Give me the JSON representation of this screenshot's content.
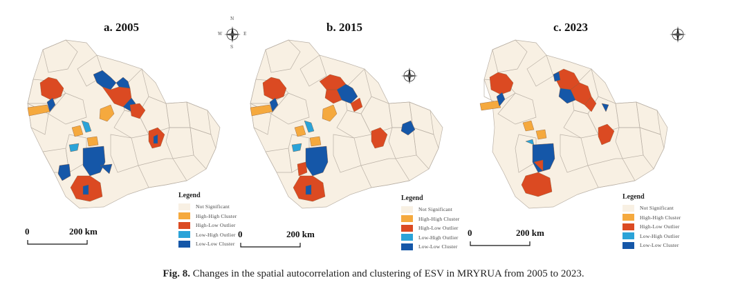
{
  "figure": {
    "panels": [
      {
        "title": "a. 2005"
      },
      {
        "title": "b. 2015"
      },
      {
        "title": "c. 2023"
      }
    ],
    "compass": {
      "n": "N",
      "s": "S",
      "e": "E",
      "w": "W"
    },
    "legend": {
      "title": "Legend",
      "items": [
        {
          "label": "Not Significant",
          "color": "#f8f0e3"
        },
        {
          "label": "High-High Cluster",
          "color": "#f5a93e"
        },
        {
          "label": "High-Low Outlier",
          "color": "#db4a22"
        },
        {
          "label": "Low-High Outlier",
          "color": "#2ba3d8"
        },
        {
          "label": "Low-Low Cluster",
          "color": "#1557a8"
        }
      ]
    },
    "scale_bar": {
      "start": "0",
      "end": "200 km"
    },
    "caption": {
      "label": "Fig. 8.",
      "text": "Changes in the spatial autocorrelation and clustering of ESV in MRYRUA from 2005 to 2023."
    }
  }
}
